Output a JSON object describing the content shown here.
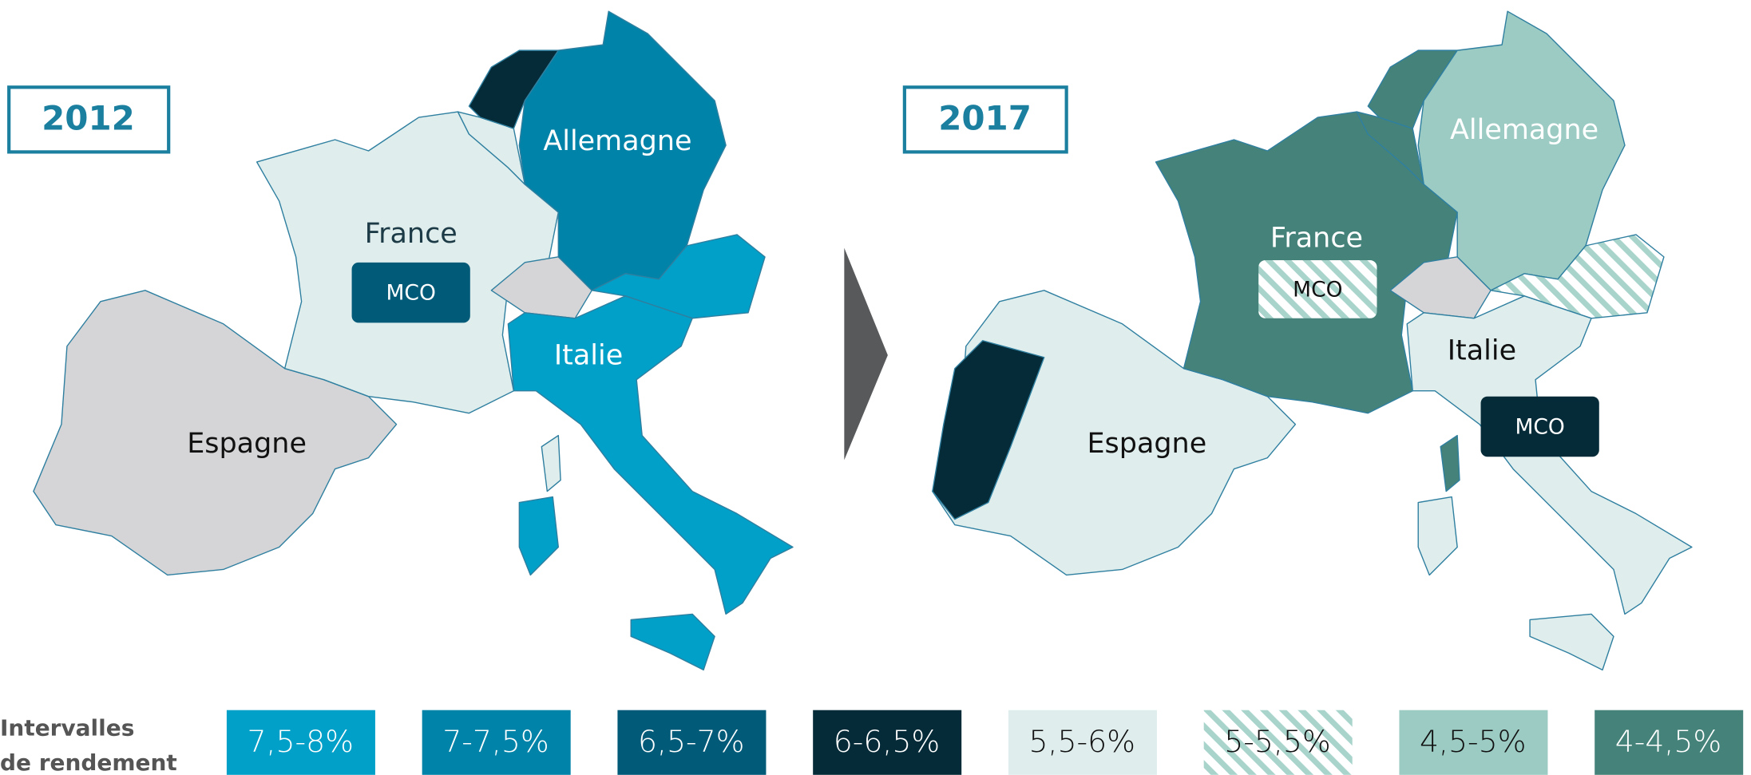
{
  "maps": [
    {
      "year": "2012",
      "countries": [
        "France",
        "Allemagne",
        "Italie",
        "Espagne"
      ],
      "badges": [
        "MCO"
      ]
    },
    {
      "year": "2017",
      "countries": [
        "France",
        "Allemagne",
        "Italie",
        "Espagne"
      ],
      "badges": [
        "MCO",
        "MCO"
      ]
    }
  ],
  "legend": {
    "title": [
      "Intervalles",
      "de rendement"
    ],
    "items": [
      "7,5-8%",
      "7-7,5%",
      "6,5-7%",
      "6-6,5%",
      "5,5-6%",
      "5-5,5%",
      "4,5-5%",
      "4-4,5%"
    ]
  }
}
